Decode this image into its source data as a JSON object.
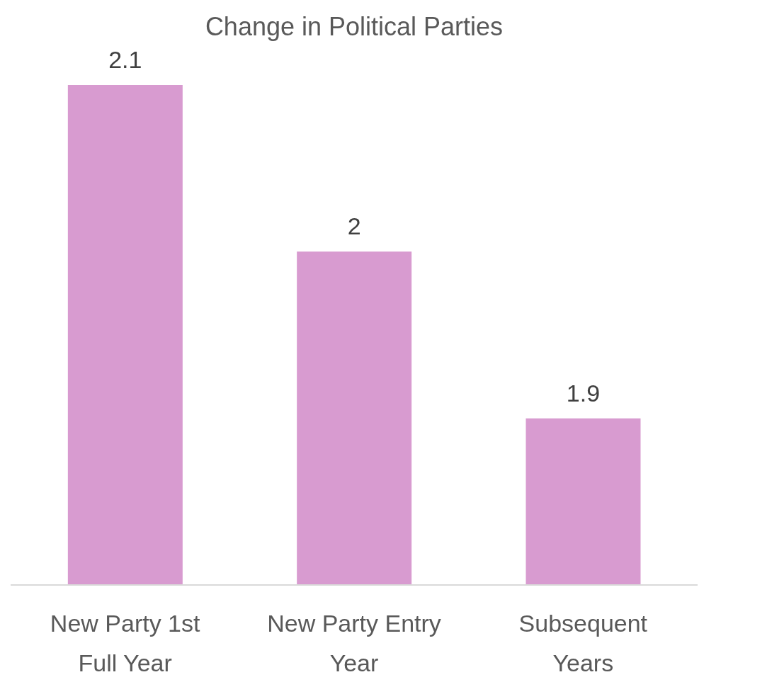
{
  "chart_data": {
    "type": "bar",
    "title": "Change in Political Parties",
    "categories": [
      "New Party 1st Full Year",
      "New Party Entry Year",
      "Subsequent Years"
    ],
    "values": [
      2.1,
      2,
      1.9
    ],
    "color": "#d89bd0",
    "ylim": [
      1.8,
      2.1
    ],
    "data_labels": true,
    "tick_labels": "x"
  }
}
